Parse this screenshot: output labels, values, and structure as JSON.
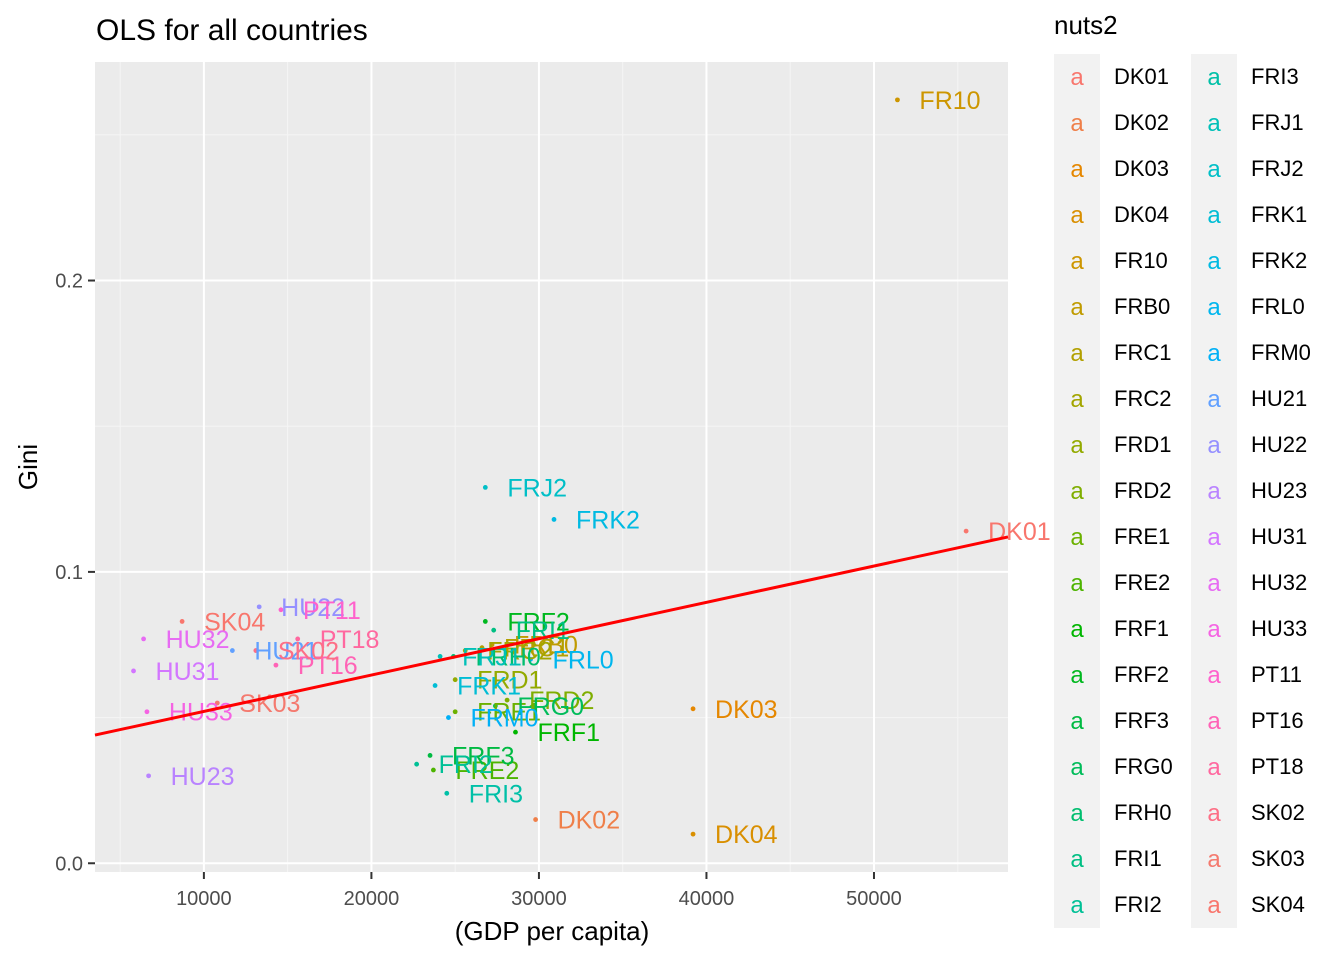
{
  "chart_data": {
    "type": "scatter",
    "title": "OLS for all countries",
    "xlabel": "(GDP per capita)",
    "ylabel": "Gini",
    "xlim": [
      3500,
      58000
    ],
    "ylim": [
      -0.003,
      0.275
    ],
    "x_ticks": [
      10000,
      20000,
      30000,
      40000,
      50000
    ],
    "x_tick_labels": [
      "10000",
      "20000",
      "30000",
      "40000",
      "50000"
    ],
    "y_ticks": [
      0.0,
      0.1,
      0.2
    ],
    "y_tick_labels": [
      "0.0",
      "0.1",
      "0.2"
    ],
    "grid": true,
    "legend": {
      "title": "nuts2",
      "position": "right",
      "glyph": "a",
      "columns": 2
    },
    "regression_line": {
      "color": "#ff0000",
      "points": [
        [
          3500,
          0.044
        ],
        [
          58000,
          0.112
        ]
      ]
    },
    "points": [
      {
        "name": "DK01",
        "x": 55500,
        "y": 0.114,
        "color": "#F8766D"
      },
      {
        "name": "DK02",
        "x": 29800,
        "y": 0.015,
        "color": "#EF7F49"
      },
      {
        "name": "DK03",
        "x": 39200,
        "y": 0.053,
        "color": "#E58700"
      },
      {
        "name": "DK04",
        "x": 39200,
        "y": 0.01,
        "color": "#D98F00"
      },
      {
        "name": "FR10",
        "x": 51400,
        "y": 0.262,
        "color": "#CD9600"
      },
      {
        "name": "FRB0",
        "x": 27200,
        "y": 0.075,
        "color": "#C09B00"
      },
      {
        "name": "FRC1",
        "x": 26600,
        "y": 0.074,
        "color": "#B2A000"
      },
      {
        "name": "FRC2",
        "x": 25600,
        "y": 0.073,
        "color": "#A3A500"
      },
      {
        "name": "FRD1",
        "x": 25000,
        "y": 0.063,
        "color": "#93AA00"
      },
      {
        "name": "FRD2",
        "x": 28100,
        "y": 0.056,
        "color": "#7FAE00"
      },
      {
        "name": "FRE1",
        "x": 25000,
        "y": 0.052,
        "color": "#6BB100"
      },
      {
        "name": "FRE2",
        "x": 23700,
        "y": 0.032,
        "color": "#4DB400"
      },
      {
        "name": "FRF1",
        "x": 28600,
        "y": 0.045,
        "color": "#00B600"
      },
      {
        "name": "FRF2",
        "x": 26800,
        "y": 0.083,
        "color": "#00B81F"
      },
      {
        "name": "FRF3",
        "x": 23500,
        "y": 0.037,
        "color": "#00BA42"
      },
      {
        "name": "FRG0",
        "x": 27400,
        "y": 0.054,
        "color": "#00BC5A"
      },
      {
        "name": "FRH0",
        "x": 24900,
        "y": 0.071,
        "color": "#00BE6F"
      },
      {
        "name": "FRI1",
        "x": 27300,
        "y": 0.08,
        "color": "#00BF83"
      },
      {
        "name": "FRI2",
        "x": 22700,
        "y": 0.034,
        "color": "#00C096"
      },
      {
        "name": "FRI3",
        "x": 24500,
        "y": 0.024,
        "color": "#00C0A7"
      },
      {
        "name": "FRJ1",
        "x": 24100,
        "y": 0.071,
        "color": "#00C0B8"
      },
      {
        "name": "FRJ2",
        "x": 26800,
        "y": 0.129,
        "color": "#00BFC7"
      },
      {
        "name": "FRK1",
        "x": 23800,
        "y": 0.061,
        "color": "#00BDD5"
      },
      {
        "name": "FRK2",
        "x": 30900,
        "y": 0.118,
        "color": "#00BAE2"
      },
      {
        "name": "FRL0",
        "x": 29500,
        "y": 0.07,
        "color": "#00B6EE"
      },
      {
        "name": "FRM0",
        "x": 24600,
        "y": 0.05,
        "color": "#00B0F6"
      },
      {
        "name": "HU21",
        "x": 11700,
        "y": 0.073,
        "color": "#61A0FF"
      },
      {
        "name": "HU22",
        "x": 13300,
        "y": 0.088,
        "color": "#9590FF"
      },
      {
        "name": "HU23",
        "x": 6700,
        "y": 0.03,
        "color": "#B983FF"
      },
      {
        "name": "HU31",
        "x": 5800,
        "y": 0.066,
        "color": "#D376FF"
      },
      {
        "name": "HU32",
        "x": 6400,
        "y": 0.077,
        "color": "#E76BF3"
      },
      {
        "name": "HU33",
        "x": 6600,
        "y": 0.052,
        "color": "#F563E3"
      },
      {
        "name": "PT11",
        "x": 14600,
        "y": 0.087,
        "color": "#FF61CC"
      },
      {
        "name": "PT16",
        "x": 14300,
        "y": 0.068,
        "color": "#FF63B6"
      },
      {
        "name": "PT18",
        "x": 15600,
        "y": 0.077,
        "color": "#FF689F"
      },
      {
        "name": "SK02",
        "x": 13100,
        "y": 0.073,
        "color": "#FD6F86"
      },
      {
        "name": "SK03",
        "x": 10800,
        "y": 0.055,
        "color": "#F47A6F"
      },
      {
        "name": "SK04",
        "x": 8700,
        "y": 0.083,
        "color": "#F8766D"
      }
    ]
  }
}
